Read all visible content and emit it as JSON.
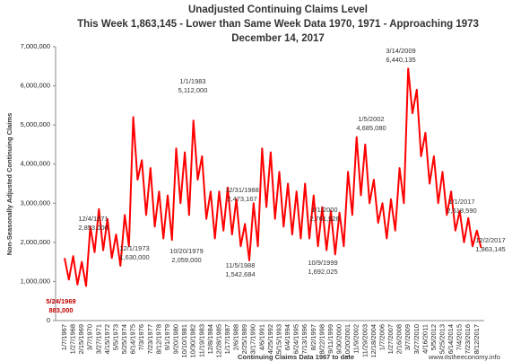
{
  "chart_data": {
    "type": "line",
    "title": "Unadjusted Continuing Claims Level",
    "subtitle": "This Week 1,863,145 - Lower than Same Week Data 1970, 1971 - Approaching 1973",
    "date": "December 14, 2017",
    "y_label": "Non-Seasonally Adjusted Continuing Claims",
    "x_label": "Continuing Claims Data 1967 to date",
    "source": "www.itstheeconomy.info",
    "categories": [
      "1/7/1967",
      null,
      "1/27/1968",
      null,
      "2/15/1969",
      null,
      "3/7/1970",
      null,
      "3/27/1971",
      null,
      "4/15/1972",
      null,
      "5/5/1973",
      null,
      "5/25/1974",
      null,
      "6/14/1975",
      null,
      "7/3/1976",
      null,
      "7/23/1977",
      null,
      "8/12/1978",
      null,
      "9/1/1979",
      null,
      "9/20/1980",
      null,
      "10/10/1981",
      null,
      "10/30/1982",
      null,
      "11/19/1983",
      null,
      "12/8/1984",
      null,
      "12/28/1985",
      null,
      "1/17/1987",
      null,
      "2/6/1988",
      null,
      "2/25/1989",
      null,
      "3/17/1990",
      null,
      "4/6/1991",
      null,
      "4/25/1992",
      null,
      "5/15/1993",
      null,
      "6/4/1994",
      null,
      "6/24/1995",
      null,
      "7/13/1996",
      null,
      "8/2/1997",
      null,
      "8/22/1998",
      null,
      "9/11/1999",
      null,
      "9/30/2000",
      null,
      "10/20/2001",
      null,
      "11/9/2002",
      null,
      "11/29/2003",
      null,
      "12/18/2004",
      null,
      "1/7/2006",
      null,
      "1/27/2007",
      null,
      "2/16/2008",
      null,
      "3/7/2009",
      null,
      "3/27/2010",
      null,
      "4/16/2011",
      null,
      "5/5/2012",
      null,
      "5/25/2013",
      null,
      "6/14/2014",
      null,
      "7/4/2015",
      null,
      "7/23/2016",
      null,
      "8/12/2017",
      null
    ],
    "series": [
      {
        "color": "#ff0000",
        "values": [
          1600000,
          1050000,
          1650000,
          920000,
          1500000,
          883000,
          2400000,
          1750000,
          2850000,
          1800000,
          2600000,
          1600000,
          2200000,
          1400000,
          2700000,
          1900000,
          5200000,
          3600000,
          4100000,
          2700000,
          3900000,
          2400000,
          3300000,
          2100000,
          3200000,
          2060000,
          4400000,
          3000000,
          4300000,
          2700000,
          5110000,
          3600000,
          4200000,
          2600000,
          3300000,
          2100000,
          3300000,
          2300000,
          3400000,
          2200000,
          3100000,
          1900000,
          2470000,
          1540000,
          3000000,
          1900000,
          4400000,
          2900000,
          4300000,
          2600000,
          3800000,
          2400000,
          3500000,
          2200000,
          3300000,
          2100000,
          3500000,
          2100000,
          3200000,
          1900000,
          2900000,
          1800000,
          2800000,
          1690000,
          2760000,
          1900000,
          3800000,
          2700000,
          4690000,
          3200000,
          4500000,
          3000000,
          3600000,
          2500000,
          3000000,
          2100000,
          3100000,
          2300000,
          3900000,
          3000000,
          6440000,
          5300000,
          5900000,
          4200000,
          4800000,
          3500000,
          4200000,
          3000000,
          3800000,
          2700000,
          3300000,
          2300000,
          2800000,
          2000000,
          2620000,
          1900000,
          2300000,
          1860000
        ]
      }
    ],
    "ylim": [
      0,
      7000000
    ],
    "yticks": [
      0,
      {
        "value": 1000000,
        "label": "1,000,000"
      },
      {
        "value": 2000000,
        "label": "2,000,000"
      },
      {
        "value": 3000000,
        "label": "3,000,000"
      },
      {
        "value": 4000000,
        "label": "4,000,000"
      },
      {
        "value": 5000000,
        "label": "5,000,000"
      },
      {
        "value": 6000000,
        "label": "6,000,000"
      },
      {
        "value": 7000000,
        "label": "7,000,000"
      }
    ],
    "grid": false,
    "annotations": [
      [
        "5/24/1969",
        "883,000"
      ],
      [
        "12/4/1971",
        "2,853,000"
      ],
      [
        "12/1/1973",
        "1,630,000"
      ],
      [
        "1/1/1983",
        "5,112,000"
      ],
      [
        "10/20/1979",
        "2,059,000"
      ],
      [
        "12/31/1988",
        "2,473,167"
      ],
      [
        "11/5/1988",
        "1,542,684"
      ],
      [
        "1/1/2000",
        "2,761,926"
      ],
      [
        "10/9/1999",
        "1,692,025"
      ],
      [
        "1/5/2002",
        "4,685,080"
      ],
      [
        "3/14/2009",
        "6,440,135"
      ],
      [
        "1/1/2017",
        "2,618,590"
      ],
      [
        "12/2/2017",
        "1,863,145"
      ]
    ]
  }
}
